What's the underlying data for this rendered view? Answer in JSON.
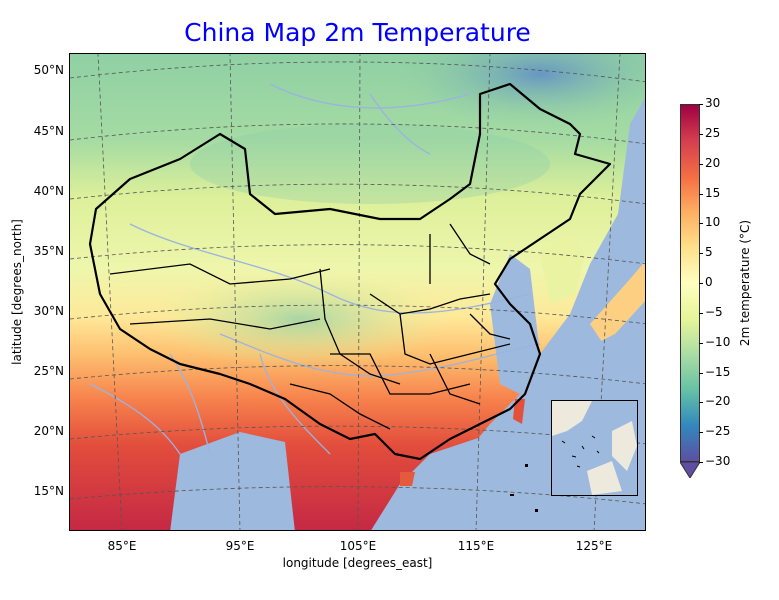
{
  "title": "China Map 2m Temperature",
  "axes": {
    "xlabel": "longitude [degrees_east]",
    "ylabel": "latitude [degrees_north]",
    "lat_ticks": [
      "50°N",
      "45°N",
      "40°N",
      "35°N",
      "30°N",
      "25°N",
      "20°N",
      "15°N"
    ],
    "lon_ticks": [
      "85°E",
      "95°E",
      "105°E",
      "115°E",
      "125°E"
    ]
  },
  "colorbar": {
    "label": "2m temperature (°C)",
    "ticks": [
      "30",
      "25",
      "20",
      "15",
      "10",
      "5",
      "0",
      "−5",
      "−10",
      "−15",
      "−20",
      "−25",
      "−30"
    ],
    "colormap": "Spectral_r",
    "range": [
      -30,
      30
    ],
    "extend": "min"
  },
  "colors": {
    "title": "#0000ff",
    "ocean": "#9db9dd",
    "land_outside": "#ede9dc",
    "rivers": "#9bb3e0",
    "borders": "#000000",
    "gridlines": "#555555"
  }
}
